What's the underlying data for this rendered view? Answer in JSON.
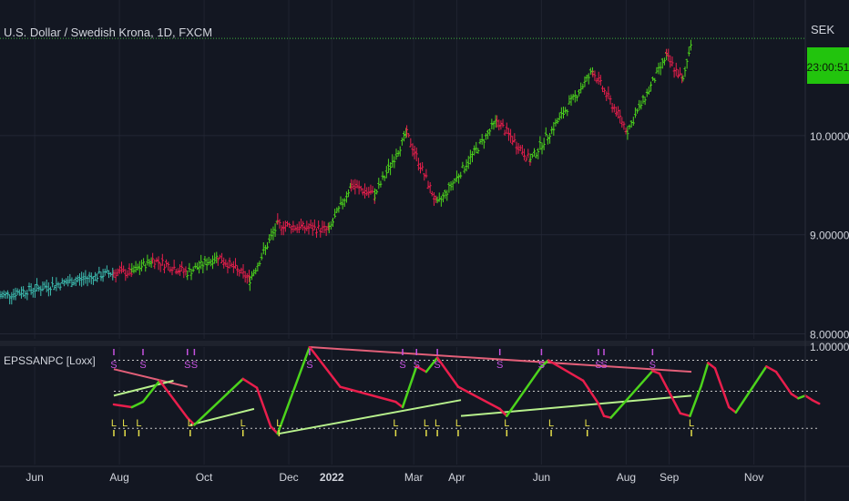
{
  "chart_data": [
    {
      "type": "candlestick",
      "title": "U.S. Dollar / Swedish Krona, 1D, FXCM",
      "currency": "SEK",
      "countdown": "23:00:51",
      "y_ticks": [
        "10.00000",
        "9.00000",
        "8.00000"
      ],
      "y_tick_values": [
        10.0,
        9.0,
        8.0
      ],
      "ylim": [
        7.95,
        11.0
      ],
      "price_line_value": 10.98,
      "colors": {
        "bull": "#4cd41c",
        "bear": "#e91e4c",
        "neutral": "#3dbdb0",
        "price_line": "#3fb33f"
      },
      "x_ticks": [
        "Jun",
        "Aug",
        "Oct",
        "Dec",
        "2022",
        "Mar",
        "Apr",
        "Jun",
        "Aug",
        "Sep",
        "Nov"
      ],
      "x_tick_days": [
        0,
        61,
        122,
        183,
        214,
        273,
        304,
        365,
        426,
        457,
        518
      ],
      "x_range_days": [
        -25,
        555
      ],
      "segments": [
        {
          "d0": -25,
          "d1": 57,
          "v0": 8.38,
          "v1": 8.62,
          "color": "neutral"
        },
        {
          "d0": 57,
          "d1": 70,
          "v0": 8.62,
          "v1": 8.62,
          "color": "bear"
        },
        {
          "d0": 70,
          "d1": 85,
          "v0": 8.62,
          "v1": 8.75,
          "color": "bull"
        },
        {
          "d0": 85,
          "d1": 110,
          "v0": 8.75,
          "v1": 8.62,
          "color": "bear"
        },
        {
          "d0": 110,
          "d1": 132,
          "v0": 8.62,
          "v1": 8.78,
          "color": "bull"
        },
        {
          "d0": 132,
          "d1": 155,
          "v0": 8.78,
          "v1": 8.55,
          "color": "bear"
        },
        {
          "d0": 155,
          "d1": 175,
          "v0": 8.55,
          "v1": 9.1,
          "color": "bull"
        },
        {
          "d0": 175,
          "d1": 212,
          "v0": 9.1,
          "v1": 9.05,
          "color": "bear"
        },
        {
          "d0": 212,
          "d1": 228,
          "v0": 9.05,
          "v1": 9.5,
          "color": "bull"
        },
        {
          "d0": 228,
          "d1": 245,
          "v0": 9.5,
          "v1": 9.4,
          "color": "bear"
        },
        {
          "d0": 245,
          "d1": 268,
          "v0": 9.4,
          "v1": 10.02,
          "color": "bull"
        },
        {
          "d0": 268,
          "d1": 290,
          "v0": 10.02,
          "v1": 9.3,
          "color": "bear"
        },
        {
          "d0": 290,
          "d1": 333,
          "v0": 9.3,
          "v1": 10.15,
          "color": "bull"
        },
        {
          "d0": 333,
          "d1": 357,
          "v0": 10.15,
          "v1": 9.75,
          "color": "bear"
        },
        {
          "d0": 357,
          "d1": 402,
          "v0": 9.75,
          "v1": 10.65,
          "color": "bull"
        },
        {
          "d0": 402,
          "d1": 427,
          "v0": 10.65,
          "v1": 10.05,
          "color": "bear"
        },
        {
          "d0": 427,
          "d1": 455,
          "v0": 10.05,
          "v1": 10.8,
          "color": "bull"
        },
        {
          "d0": 455,
          "d1": 467,
          "v0": 10.8,
          "v1": 10.55,
          "color": "bear"
        },
        {
          "d0": 467,
          "d1": 473,
          "v0": 10.55,
          "v1": 10.98,
          "color": "bull"
        }
      ]
    },
    {
      "type": "line",
      "title": "EPSSANPC [Loxx]",
      "y_ticks": [
        "1.00000"
      ],
      "ylim": [
        0,
        1
      ],
      "signal_labels": {
        "sell": "S",
        "buy": "L"
      },
      "colors": {
        "up": "#4cd41c",
        "down": "#e91e4c",
        "upper_trend": "#e25f78",
        "lower_trend": "#b7f08c",
        "level": "#c9c9c9",
        "sell_label": "#c552e0",
        "buy_label": "#e6e04a"
      },
      "levels": [
        0.85,
        0.5,
        0.08
      ],
      "osc_points": [
        [
          57,
          0.35
        ],
        [
          70,
          0.32
        ],
        [
          78,
          0.38
        ],
        [
          90,
          0.62
        ],
        [
          110,
          0.2
        ],
        [
          115,
          0.12
        ],
        [
          150,
          0.64
        ],
        [
          160,
          0.54
        ],
        [
          170,
          0.1
        ],
        [
          175,
          0.02
        ],
        [
          198,
          1.0
        ],
        [
          220,
          0.55
        ],
        [
          260,
          0.38
        ],
        [
          265,
          0.32
        ],
        [
          275,
          0.78
        ],
        [
          282,
          0.72
        ],
        [
          290,
          0.88
        ],
        [
          305,
          0.55
        ],
        [
          335,
          0.3
        ],
        [
          340,
          0.22
        ],
        [
          365,
          0.78
        ],
        [
          370,
          0.85
        ],
        [
          395,
          0.62
        ],
        [
          406,
          0.36
        ],
        [
          410,
          0.22
        ],
        [
          415,
          0.2
        ],
        [
          445,
          0.73
        ],
        [
          450,
          0.7
        ],
        [
          465,
          0.25
        ],
        [
          472,
          0.22
        ],
        [
          480,
          0.56
        ],
        [
          485,
          0.82
        ],
        [
          490,
          0.76
        ],
        [
          500,
          0.32
        ],
        [
          505,
          0.26
        ],
        [
          527,
          0.78
        ],
        [
          534,
          0.72
        ],
        [
          545,
          0.47
        ],
        [
          550,
          0.42
        ],
        [
          555,
          0.45
        ],
        [
          560,
          0.4
        ],
        [
          565,
          0.36
        ]
      ],
      "trend_lines": [
        {
          "kind": "upper",
          "d0": 57,
          "v0": 0.75,
          "d1": 110,
          "v1": 0.55
        },
        {
          "kind": "upper",
          "d0": 198,
          "v0": 1.0,
          "d1": 473,
          "v1": 0.72
        },
        {
          "kind": "lower",
          "d0": 57,
          "v0": 0.45,
          "d1": 100,
          "v1": 0.62
        },
        {
          "kind": "lower",
          "d0": 112,
          "v0": 0.12,
          "d1": 158,
          "v1": 0.3
        },
        {
          "kind": "lower",
          "d0": 176,
          "v0": 0.02,
          "d1": 307,
          "v1": 0.4
        },
        {
          "kind": "lower",
          "d0": 307,
          "d1": 473,
          "v0": 0.22,
          "v1": 0.45
        }
      ],
      "sell_signals": [
        57,
        78,
        110,
        115,
        198,
        265,
        275,
        290,
        335,
        365,
        406,
        410,
        445
      ],
      "buy_signals": [
        57,
        65,
        75,
        112,
        150,
        176,
        260,
        282,
        290,
        305,
        340,
        372,
        398,
        473
      ]
    }
  ]
}
